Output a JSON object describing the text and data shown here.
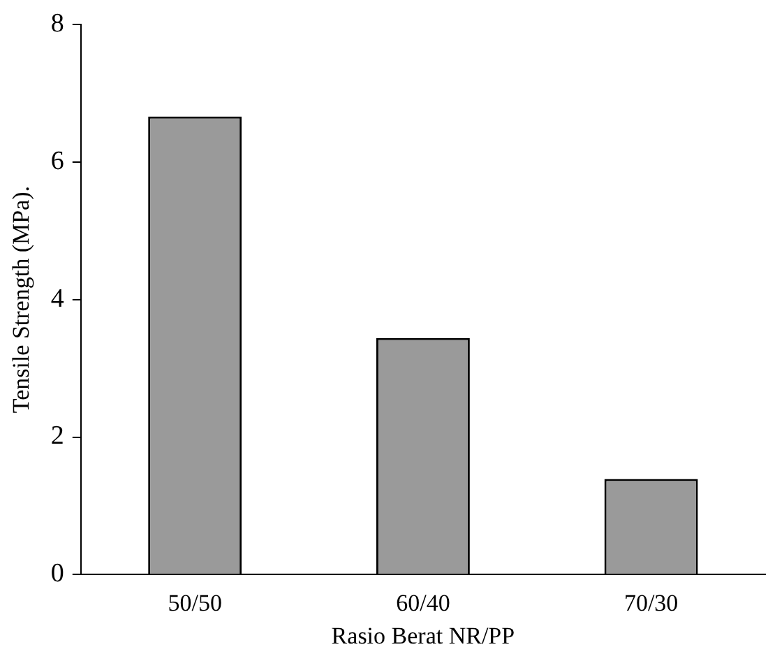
{
  "chart_data": {
    "type": "bar",
    "xlabel": "Rasio Berat NR/PP",
    "ylabel": "Tensile Strength (MPa).",
    "categories": [
      "50/50",
      "60/40",
      "70/30"
    ],
    "values": [
      6.66,
      3.44,
      1.39
    ],
    "color": "#9a9a9a",
    "ylim": [
      0,
      8
    ],
    "yticks": [
      0,
      2,
      4,
      6,
      8
    ],
    "grid": false,
    "legend": false
  }
}
